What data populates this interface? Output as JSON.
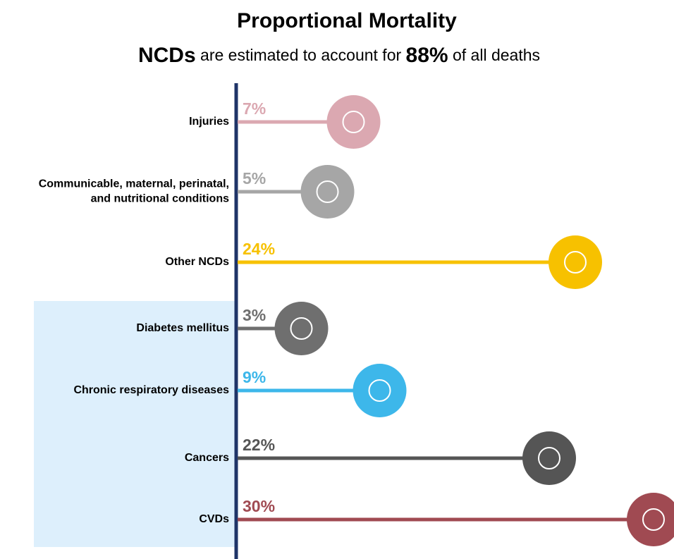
{
  "chart_data": {
    "type": "lollipop",
    "title": "Proportional Mortality",
    "subtitle": [
      {
        "text": "NCDs",
        "bold": true
      },
      {
        "text": " are estimated to account for ",
        "bold": false
      },
      {
        "text": "88%",
        "bold": true
      },
      {
        "text": " of all deaths",
        "bold": false
      }
    ],
    "categories": [
      "Injuries",
      [
        "Communicable, maternal, perinatal,",
        "and nutritional conditions"
      ],
      "Other NCDs",
      "Diabetes mellitus",
      "Chronic respiratory diseases",
      "Cancers",
      "CVDs"
    ],
    "values": [
      7,
      5,
      24,
      3,
      9,
      22,
      30
    ],
    "value_labels": [
      "7%",
      "5%",
      "24%",
      "3%",
      "9%",
      "22%",
      "30%"
    ],
    "colors": [
      "#dba8b1",
      "#a6a6a6",
      "#f7c100",
      "#6f6f6f",
      "#3db7ea",
      "#555555",
      "#a04a52"
    ],
    "highlight_color": "#ddeffc"
  }
}
